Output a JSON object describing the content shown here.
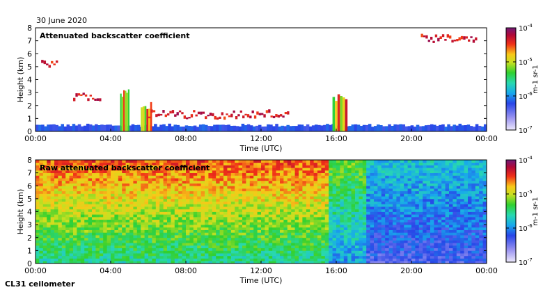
{
  "date": "30 June 2020",
  "instrument": "CL31 ceilometer",
  "chart_data": [
    {
      "type": "heatmap",
      "title": "Attenuated backscatter coefficient",
      "xlabel": "Time (UTC)",
      "ylabel": "Height (km)",
      "xticks": [
        "00:00",
        "04:00",
        "08:00",
        "12:00",
        "16:00",
        "20:00",
        "00:00"
      ],
      "yticks": [
        "0",
        "1",
        "2",
        "3",
        "4",
        "5",
        "6",
        "7",
        "8"
      ],
      "ylim": [
        0,
        8
      ],
      "colorbar": {
        "label": "m-1 sr-1",
        "ticks": [
          "10",
          "10",
          "10",
          "10"
        ],
        "exponents": [
          "-7",
          "-6",
          "-5",
          "-4"
        ],
        "range": [
          1e-07,
          0.0001
        ],
        "scale": "log"
      },
      "features": [
        {
          "name": "boundary layer",
          "start_h": 0,
          "end_h": 24,
          "height_km": 0.5
        },
        {
          "name": "residual layer",
          "start_h": 0.3,
          "end_h": 1.2,
          "height_km": 5.0
        },
        {
          "name": "aerosol layer",
          "start_h": 2.0,
          "end_h": 3.5,
          "height_km": 2.6
        },
        {
          "name": "convective plume",
          "start_h": 4.5,
          "end_h": 5.0,
          "height_km": 3.0
        },
        {
          "name": "convective plume",
          "start_h": 5.6,
          "end_h": 6.2,
          "height_km": 2.0
        },
        {
          "name": "cumulus layer",
          "start_h": 6.0,
          "end_h": 13.5,
          "height_km": 1.2
        },
        {
          "name": "convective plume",
          "start_h": 15.8,
          "end_h": 16.6,
          "height_km": 2.5
        },
        {
          "name": "elevated cloud",
          "start_h": 20.5,
          "end_h": 23.5,
          "height_km": 7.0
        }
      ]
    },
    {
      "type": "heatmap",
      "title": "Raw attenuated backscatter coefficient",
      "xlabel": "Time (UTC)",
      "ylabel": "Height (km)",
      "xticks": [
        "00:00",
        "04:00",
        "08:00",
        "12:00",
        "16:00",
        "20:00",
        "00:00"
      ],
      "yticks": [
        "0",
        "1",
        "2",
        "3",
        "4",
        "5",
        "6",
        "7",
        "8"
      ],
      "ylim": [
        0,
        8
      ],
      "colorbar": {
        "label": "m-1 sr-1",
        "ticks": [
          "10",
          "10",
          "10",
          "10"
        ],
        "exponents": [
          "-7",
          "-6",
          "-5",
          "-4"
        ],
        "range": [
          1e-07,
          0.0001
        ],
        "scale": "log"
      },
      "features": [
        {
          "name": "daytime noise",
          "start_h": 0,
          "end_h": 15.5,
          "level": "high"
        },
        {
          "name": "nighttime noise",
          "start_h": 17.5,
          "end_h": 24,
          "level": "low"
        }
      ]
    }
  ]
}
